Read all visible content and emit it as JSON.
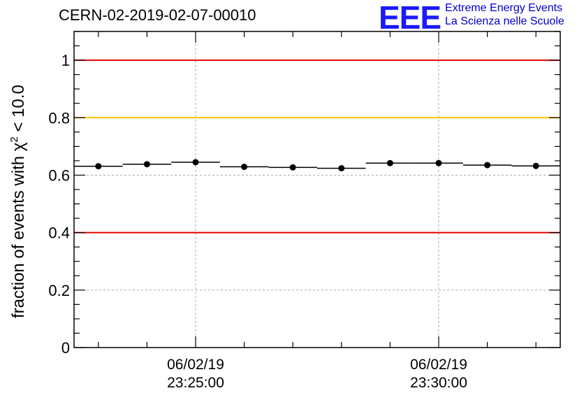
{
  "header": {
    "run_title": "CERN-02-2019-02-07-00010",
    "logo_mark": "EEE",
    "logo_line1": "Extreme Energy Events",
    "logo_line2": "La Scienza nelle Scuole"
  },
  "chart_data": {
    "type": "scatter",
    "title": "CERN-02-2019-02-07-00010",
    "xlabel": "",
    "ylabel_prefix": "fraction of events with χ",
    "ylabel_sup": "2",
    "ylabel_suffix": " < 10.0",
    "ylim": [
      0,
      1.1
    ],
    "yticks": [
      0,
      0.2,
      0.4,
      0.6,
      0.8,
      1
    ],
    "ytick_labels": [
      "0",
      "0.2",
      "0.4",
      "0.6",
      "0.8",
      "1"
    ],
    "xlim_minutes": [
      0,
      10
    ],
    "xticks": [
      {
        "at_minute": 2.5,
        "date": "06/02/19",
        "time": "23:25:00"
      },
      {
        "at_minute": 7.5,
        "date": "06/02/19",
        "time": "23:30:00"
      }
    ],
    "reference_lines": [
      {
        "y": 1.0,
        "color": "#e00000"
      },
      {
        "y": 0.8,
        "color": "#ffc000"
      },
      {
        "y": 0.4,
        "color": "#e00000"
      }
    ],
    "grid": true,
    "points": [
      {
        "x_start": 0.0,
        "x_end": 1.0,
        "y": 0.631
      },
      {
        "x_start": 1.0,
        "x_end": 2.0,
        "y": 0.638
      },
      {
        "x_start": 2.0,
        "x_end": 3.0,
        "y": 0.645
      },
      {
        "x_start": 3.0,
        "x_end": 4.0,
        "y": 0.629
      },
      {
        "x_start": 4.0,
        "x_end": 5.0,
        "y": 0.627
      },
      {
        "x_start": 5.0,
        "x_end": 6.0,
        "y": 0.624
      },
      {
        "x_start": 6.0,
        "x_end": 7.0,
        "y": 0.642
      },
      {
        "x_start": 7.0,
        "x_end": 8.0,
        "y": 0.642
      },
      {
        "x_start": 8.0,
        "x_end": 9.0,
        "y": 0.635
      },
      {
        "x_start": 9.0,
        "x_end": 10.0,
        "y": 0.632
      }
    ]
  }
}
